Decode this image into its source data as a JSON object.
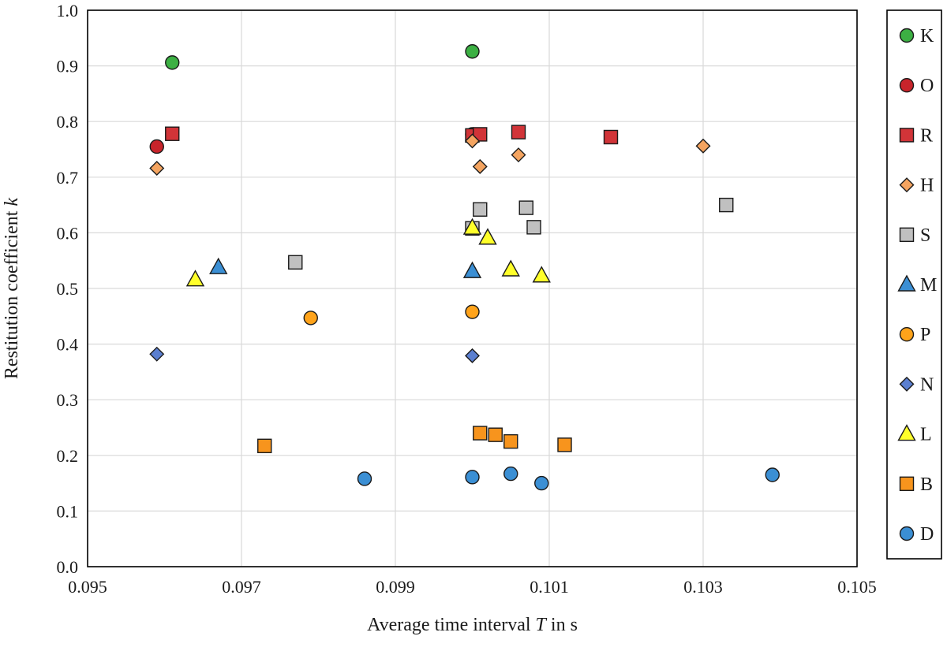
{
  "chart_data": {
    "type": "scatter",
    "title": "",
    "xlabel_parts": [
      "Average time interval ",
      "T",
      " in s"
    ],
    "ylabel_parts": [
      "Restitution coefficient ",
      "k"
    ],
    "xlim": [
      0.095,
      0.105
    ],
    "ylim": [
      0.0,
      1.0
    ],
    "x_ticks": [
      0.095,
      0.097,
      0.099,
      0.101,
      0.103,
      0.105
    ],
    "x_tick_labels": [
      "0.095",
      "0.097",
      "0.099",
      "0.101",
      "0.103",
      "0.105"
    ],
    "y_ticks": [
      0.0,
      0.1,
      0.2,
      0.3,
      0.4,
      0.5,
      0.6,
      0.7,
      0.8,
      0.9,
      1.0
    ],
    "y_tick_labels": [
      "0.0",
      "0.1",
      "0.2",
      "0.3",
      "0.4",
      "0.5",
      "0.6",
      "0.7",
      "0.8",
      "0.9",
      "1.0"
    ],
    "grid": true,
    "legend_position": "right",
    "series": [
      {
        "name": "K",
        "marker": "circle",
        "color": "#3cb043",
        "points": [
          [
            0.0961,
            0.906
          ],
          [
            0.1,
            0.926
          ]
        ]
      },
      {
        "name": "O",
        "marker": "circle",
        "color": "#c8242b",
        "points": [
          [
            0.0959,
            0.755
          ],
          [
            0.1,
            0.777
          ]
        ]
      },
      {
        "name": "R",
        "marker": "square",
        "color": "#d13438",
        "points": [
          [
            0.0961,
            0.778
          ],
          [
            0.1,
            0.775
          ],
          [
            0.1001,
            0.777
          ],
          [
            0.1006,
            0.781
          ],
          [
            0.1018,
            0.772
          ]
        ]
      },
      {
        "name": "H",
        "marker": "diamond",
        "color": "#f4a460",
        "points": [
          [
            0.0959,
            0.716
          ],
          [
            0.1,
            0.765
          ],
          [
            0.1001,
            0.719
          ],
          [
            0.1006,
            0.74
          ],
          [
            0.103,
            0.756
          ]
        ]
      },
      {
        "name": "S",
        "marker": "square",
        "color": "#c0c0c0",
        "points": [
          [
            0.0977,
            0.547
          ],
          [
            0.1,
            0.608
          ],
          [
            0.1001,
            0.642
          ],
          [
            0.1007,
            0.645
          ],
          [
            0.1008,
            0.61
          ],
          [
            0.1033,
            0.65
          ]
        ]
      },
      {
        "name": "M",
        "marker": "triangle",
        "color": "#3b8fd4",
        "points": [
          [
            0.0967,
            0.538
          ],
          [
            0.1,
            0.531
          ]
        ]
      },
      {
        "name": "P",
        "marker": "circle",
        "color": "#ffa31a",
        "points": [
          [
            0.0979,
            0.447
          ],
          [
            0.1,
            0.458
          ]
        ]
      },
      {
        "name": "N",
        "marker": "diamond",
        "color": "#5b7fd0",
        "points": [
          [
            0.0959,
            0.382
          ],
          [
            0.1,
            0.379
          ]
        ]
      },
      {
        "name": "L",
        "marker": "triangle",
        "color": "#ffff2a",
        "points": [
          [
            0.0964,
            0.516
          ],
          [
            0.1,
            0.609
          ],
          [
            0.1002,
            0.591
          ],
          [
            0.1005,
            0.534
          ],
          [
            0.1009,
            0.523
          ]
        ]
      },
      {
        "name": "B",
        "marker": "square",
        "color": "#f7941d",
        "points": [
          [
            0.0973,
            0.217
          ],
          [
            0.1001,
            0.24
          ],
          [
            0.1003,
            0.237
          ],
          [
            0.1005,
            0.225
          ],
          [
            0.1012,
            0.219
          ]
        ]
      },
      {
        "name": "D",
        "marker": "circle",
        "color": "#3b8fd4",
        "points": [
          [
            0.0986,
            0.158
          ],
          [
            0.1,
            0.161
          ],
          [
            0.1005,
            0.167
          ],
          [
            0.1009,
            0.15
          ],
          [
            0.1039,
            0.165
          ]
        ]
      }
    ]
  }
}
